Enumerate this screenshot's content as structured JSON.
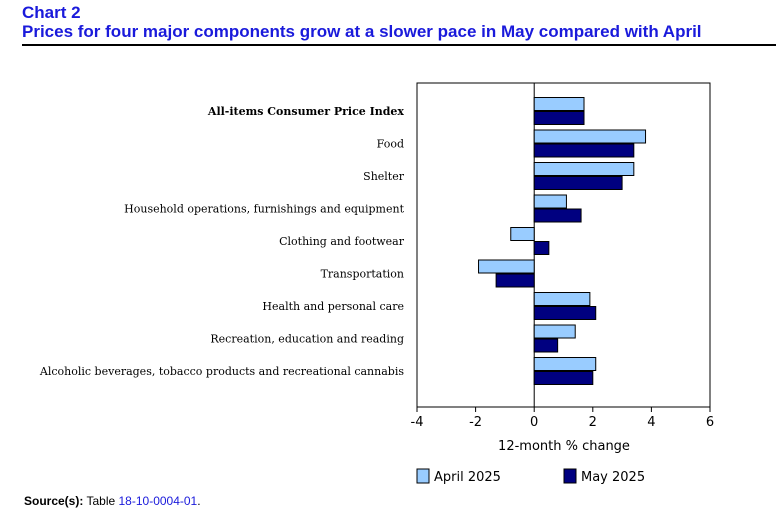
{
  "header": {
    "chart_number": "Chart 2",
    "title": "Prices for four major components grow at a slower pace in May compared with April"
  },
  "source": {
    "label": "Source(s):",
    "prefix": "Table",
    "table_id": "18-10-0004-01",
    "suffix": "."
  },
  "chart_data": {
    "type": "bar",
    "orientation": "horizontal",
    "categories": [
      "All-items Consumer Price Index",
      "Food",
      "Shelter",
      "Household operations, furnishings and equipment",
      "Clothing and footwear",
      "Transportation",
      "Health and personal care",
      "Recreation, education and reading",
      "Alcoholic beverages, tobacco products and recreational cannabis"
    ],
    "bold_categories": [
      "All-items Consumer Price Index"
    ],
    "series": [
      {
        "name": "April 2025",
        "color": "#99ccff",
        "values": [
          1.7,
          3.8,
          3.4,
          1.1,
          -0.8,
          -1.9,
          1.9,
          1.4,
          2.1
        ]
      },
      {
        "name": "May 2025",
        "color": "#000080",
        "values": [
          1.7,
          3.4,
          3.0,
          1.6,
          0.5,
          -1.3,
          2.1,
          0.8,
          2.0
        ]
      }
    ],
    "xlabel": "12-month % change",
    "ylabel": "",
    "xlim": [
      -4,
      6
    ],
    "xticks": [
      "-4",
      "-2",
      "0",
      "2",
      "4",
      "6"
    ],
    "grid": false,
    "legend_position": "bottom"
  }
}
